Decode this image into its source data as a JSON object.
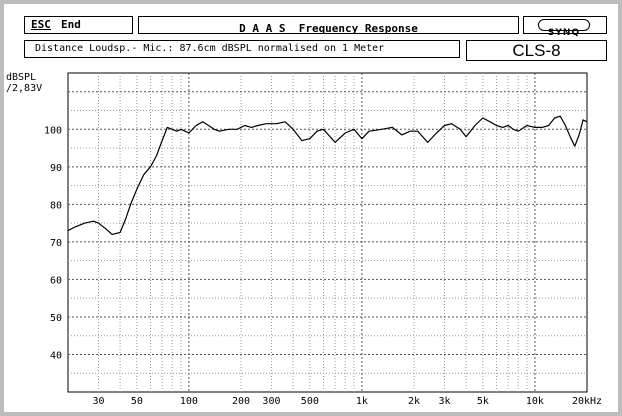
{
  "header": {
    "esc_key": "ESC",
    "esc_label": "End",
    "title": "D A A S  Frequency Response",
    "logo_text": "SYNQ"
  },
  "subheader": {
    "description": "Distance Loudsp.- Mic.: 87.6cm dBSPL normalised on 1 Meter",
    "model": "CLS-8"
  },
  "chart_data": {
    "type": "line",
    "xscale": "log",
    "xlim": [
      20,
      20000
    ],
    "ylim": [
      30,
      115
    ],
    "grid": true,
    "ylabel_lines": [
      "dBSPL",
      "/2,83V"
    ],
    "xlabel": "",
    "x_ticks": [
      {
        "value": 30,
        "label": "30"
      },
      {
        "value": 50,
        "label": "50"
      },
      {
        "value": 100,
        "label": "100"
      },
      {
        "value": 200,
        "label": "200"
      },
      {
        "value": 300,
        "label": "300"
      },
      {
        "value": 500,
        "label": "500"
      },
      {
        "value": 1000,
        "label": "1k"
      },
      {
        "value": 2000,
        "label": "2k"
      },
      {
        "value": 3000,
        "label": "3k"
      },
      {
        "value": 5000,
        "label": "5k"
      },
      {
        "value": 10000,
        "label": "10k"
      },
      {
        "value": 20000,
        "label": "20kHz"
      }
    ],
    "y_ticks": [
      {
        "value": 100,
        "label": "100"
      },
      {
        "value": 90,
        "label": "90"
      },
      {
        "value": 80,
        "label": "80"
      },
      {
        "value": 70,
        "label": "70"
      },
      {
        "value": 60,
        "label": "60"
      },
      {
        "value": 50,
        "label": "50"
      },
      {
        "value": 40,
        "label": "40"
      }
    ],
    "series": [
      {
        "color": "#000000",
        "x": [
          20,
          22,
          25,
          28,
          30,
          33,
          36,
          40,
          43,
          46,
          50,
          55,
          60,
          65,
          70,
          75,
          80,
          85,
          90,
          95,
          100,
          110,
          120,
          130,
          140,
          150,
          170,
          190,
          210,
          230,
          250,
          280,
          320,
          360,
          400,
          450,
          500,
          550,
          600,
          700,
          800,
          900,
          1000,
          1100,
          1300,
          1500,
          1700,
          1900,
          2100,
          2400,
          2700,
          3000,
          3300,
          3700,
          4000,
          4500,
          5000,
          5500,
          6000,
          6500,
          7000,
          7500,
          8000,
          9000,
          10000,
          11000,
          12000,
          13000,
          14000,
          15000,
          16000,
          17000,
          18000,
          19000,
          20000
        ],
        "y": [
          73,
          74,
          75,
          75.5,
          75,
          73.5,
          72,
          72.5,
          76,
          80,
          84,
          88,
          90,
          93,
          97,
          100.5,
          100,
          99.5,
          100,
          99.5,
          99,
          101,
          102,
          101,
          100,
          99.5,
          100,
          100,
          101,
          100.5,
          101,
          101.5,
          101.5,
          102,
          100,
          97,
          97.5,
          99.5,
          100,
          96.5,
          99,
          100,
          97.5,
          99.5,
          100,
          100.5,
          98.5,
          99.5,
          99.5,
          96.5,
          99,
          101,
          101.5,
          100,
          98,
          101,
          103,
          102,
          101,
          100.5,
          101,
          100,
          99.5,
          101,
          100.5,
          100.5,
          101,
          103,
          103.5,
          101,
          98,
          95.5,
          98.5,
          102.5,
          102
        ]
      }
    ]
  }
}
